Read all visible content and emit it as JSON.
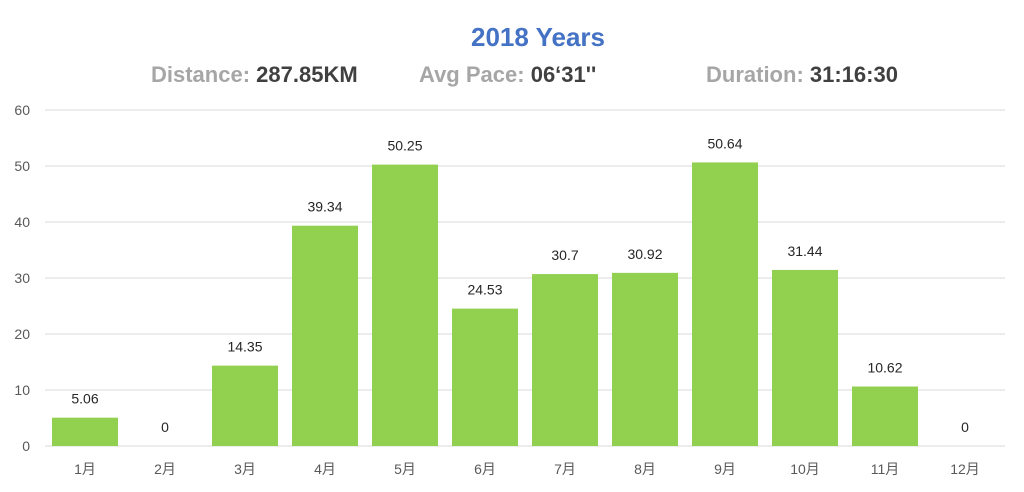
{
  "chart_data": {
    "type": "bar",
    "title": "2018 Years",
    "categories": [
      "1月",
      "2月",
      "3月",
      "4月",
      "5月",
      "6月",
      "7月",
      "8月",
      "9月",
      "10月",
      "11月",
      "12月"
    ],
    "values": [
      5.06,
      0,
      14.35,
      39.34,
      50.25,
      24.53,
      30.7,
      30.92,
      50.64,
      31.44,
      10.62,
      0
    ],
    "data_labels": [
      "5.06",
      "0",
      "14.35",
      "39.34",
      "50.25",
      "24.53",
      "30.7",
      "30.92",
      "50.64",
      "31.44",
      "10.62",
      "0"
    ],
    "yticks": [
      "0",
      "10",
      "20",
      "30",
      "40",
      "50",
      "60"
    ],
    "ylim": [
      0,
      60
    ],
    "grid": true,
    "legend": "none",
    "bar_color": "#92D050",
    "grid_color": "#D9D9D9"
  },
  "stats": {
    "distance": {
      "label": "Distance:",
      "value": "287.85KM"
    },
    "pace": {
      "label": "Avg Pace:",
      "value": "06‘31''"
    },
    "duration": {
      "label": "Duration:",
      "value": "31:16:30"
    }
  }
}
